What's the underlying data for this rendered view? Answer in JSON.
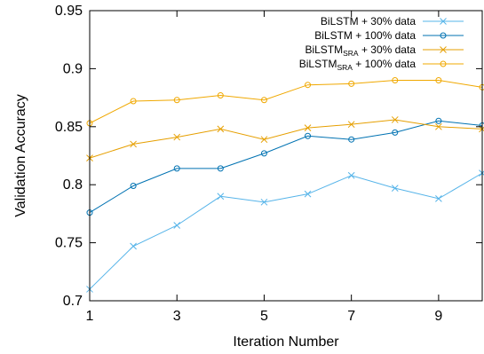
{
  "chart_data": {
    "type": "line",
    "title": "",
    "xlabel": "Iteration Number",
    "ylabel": "Validation Accuracy",
    "xlim": [
      1,
      10
    ],
    "ylim": [
      0.7,
      0.95
    ],
    "xticks": [
      1,
      3,
      5,
      7,
      9
    ],
    "yticks": [
      0.7,
      0.75,
      0.8,
      0.85,
      0.9,
      0.95
    ],
    "xtick_labels": [
      "1",
      "3",
      "5",
      "7",
      "9"
    ],
    "ytick_labels": [
      "0.7",
      "0.75",
      "0.8",
      "0.85",
      "0.9",
      "0.95"
    ],
    "grid": false,
    "legend_position": "top-right",
    "x": [
      1,
      2,
      3,
      4,
      5,
      6,
      7,
      8,
      9,
      10
    ],
    "series": [
      {
        "name": "BiLSTM + 30% data",
        "name_main": "BiLSTM",
        "name_sub": "",
        "name_rest": " + 30% data",
        "marker": "x",
        "color": "#56b4e9",
        "values": [
          0.71,
          0.747,
          0.765,
          0.79,
          0.785,
          0.792,
          0.808,
          0.797,
          0.788,
          0.81
        ]
      },
      {
        "name": "BiLSTM + 100% data",
        "name_main": "BiLSTM",
        "name_sub": "",
        "name_rest": " + 100% data",
        "marker": "circle",
        "color": "#0072b2",
        "values": [
          0.776,
          0.799,
          0.814,
          0.814,
          0.827,
          0.842,
          0.839,
          0.845,
          0.855,
          0.851
        ]
      },
      {
        "name": "BiLSTMSRA + 30% data",
        "name_main": "BiLSTM",
        "name_sub": "SRA",
        "name_rest": " + 30% data",
        "marker": "x",
        "color": "#e69f00",
        "values": [
          0.823,
          0.835,
          0.841,
          0.848,
          0.839,
          0.849,
          0.852,
          0.856,
          0.85,
          0.848
        ]
      },
      {
        "name": "BiLSTMSRA + 100% data",
        "name_main": "BiLSTM",
        "name_sub": "SRA",
        "name_rest": " + 100% data",
        "marker": "circle",
        "color": "#f0a800",
        "values": [
          0.853,
          0.872,
          0.873,
          0.877,
          0.873,
          0.886,
          0.887,
          0.89,
          0.89,
          0.884
        ]
      }
    ]
  }
}
